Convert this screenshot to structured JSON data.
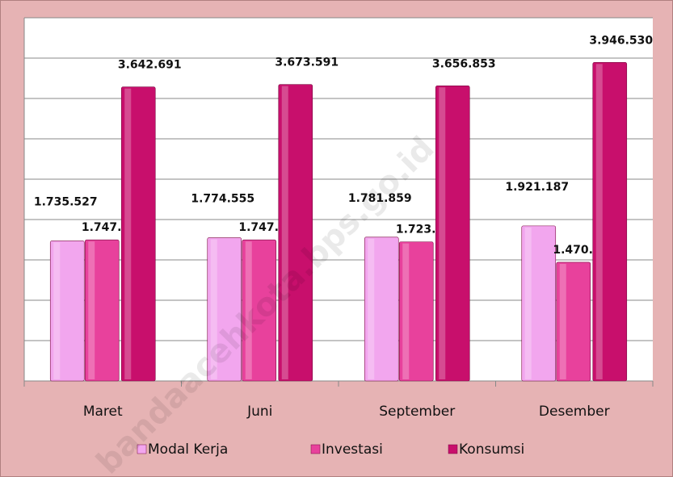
{
  "chart_data": {
    "type": "bar",
    "categories": [
      "Maret",
      "Juni",
      "September",
      "Desember"
    ],
    "series": [
      {
        "name": "Modal Kerja",
        "color": "#f2a6ee",
        "values": [
          1735527,
          1774555,
          1781859,
          1921187
        ],
        "value_labels": [
          "1.735.527",
          "1.774.555",
          "1.781.859",
          "1.921.187"
        ]
      },
      {
        "name": "Investasi",
        "color": "#e8419c",
        "values": [
          1747843,
          1747843,
          1723764,
          1470971
        ],
        "value_labels": [
          "1.747.843",
          "1.747.843",
          "1.723.764",
          "1.470.971"
        ]
      },
      {
        "name": "Konsumsi",
        "color": "#c80f6c",
        "values": [
          3642691,
          3673591,
          3656853,
          3946530
        ],
        "value_labels": [
          "3.642.691",
          "3.673.591",
          "3.656.853",
          "3.946.530"
        ]
      }
    ],
    "ylim": [
      0,
      4500000
    ],
    "yticks": [
      0,
      500000,
      1000000,
      1500000,
      2000000,
      2500000,
      3000000,
      3500000,
      4000000,
      4500000
    ],
    "grid": true,
    "legend": "bottom",
    "watermark": "bandaacehkota.bps.go.id"
  }
}
